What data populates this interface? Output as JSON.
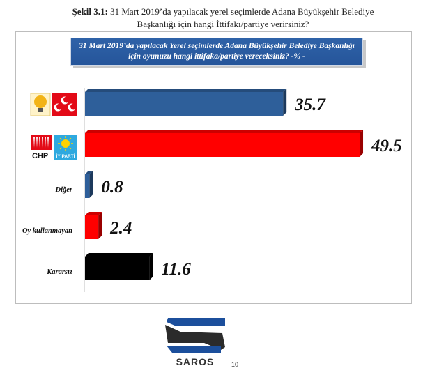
{
  "caption": {
    "label": "Şekil 3.1:",
    "line1": "31 Mart 2019’da yapılacak yerel seçimlerde Adana Büyükşehir Belediye",
    "line2": "Başkanlığı için hangi İttifakı/partiye verirsiniz?"
  },
  "banner": {
    "line1": "31 Mart 2019’da yapılacak Yerel seçimlerde Adana Büyükşehir Belediye Başkanlığı",
    "line2": "için oyunuzu hangi ittifaka/partiye vereceksiniz? -% -"
  },
  "party_logos": {
    "chp_text": "CHP",
    "iyi_text": "İYİPARTİ"
  },
  "chart_data": {
    "type": "bar",
    "orientation": "horizontal",
    "categories": [
      "",
      "",
      "Diğer",
      "Oy kullanmayan",
      "Kararsız"
    ],
    "values": [
      35.7,
      49.5,
      0.8,
      2.4,
      11.6
    ],
    "colors": [
      "#2e5f9a",
      "#ff0000",
      "#2e5f9a",
      "#ff0000",
      "#000000"
    ],
    "icons": [
      "akp-mhp-logos",
      "chp-iyi-logos",
      null,
      null,
      null
    ],
    "xlim": [
      0,
      50
    ],
    "title": "",
    "xlabel": "",
    "ylabel": "",
    "grid": false,
    "legend": "none"
  },
  "footer": {
    "logo_text": "SAROS",
    "page_number": "10"
  }
}
